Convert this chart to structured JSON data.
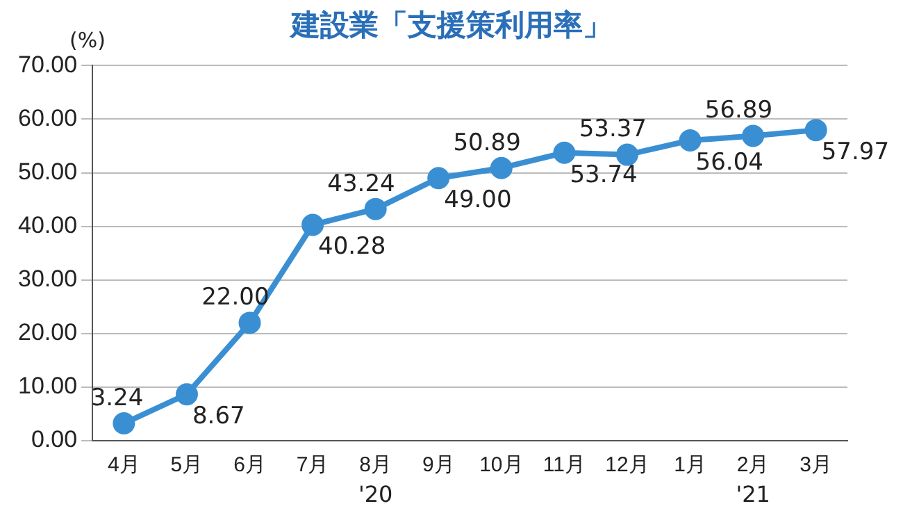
{
  "chart_data": {
    "type": "line",
    "title": "建設業「支援策利用率」",
    "ylabel": "(%)",
    "categories": [
      "4月",
      "5月",
      "6月",
      "7月",
      "8月",
      "9月",
      "10月",
      "11月",
      "12月",
      "1月",
      "2月",
      "3月"
    ],
    "series": [
      {
        "color": "#3a8fd3",
        "values": [
          3.24,
          8.67,
          22.0,
          40.28,
          43.24,
          49.0,
          50.89,
          53.74,
          53.37,
          56.04,
          56.89,
          57.97
        ],
        "value_labels": [
          "3.24",
          "8.67",
          "22.00",
          "40.28",
          "43.24",
          "49.00",
          "50.89",
          "53.74",
          "53.37",
          "56.04",
          "56.89",
          "57.97"
        ]
      }
    ],
    "ylim": [
      0,
      70
    ],
    "yticks": [
      {
        "value": 0,
        "label": "0.00"
      },
      {
        "value": 10,
        "label": "10.00"
      },
      {
        "value": 20,
        "label": "20.00"
      },
      {
        "value": 30,
        "label": "30.00"
      },
      {
        "value": 40,
        "label": "40.00"
      },
      {
        "value": 50,
        "label": "50.00"
      },
      {
        "value": 60,
        "label": "60.00"
      },
      {
        "value": 70,
        "label": "70.00"
      }
    ],
    "annotations": [
      "'20",
      "'21"
    ],
    "grid": "y",
    "legend": false,
    "marker": "circle",
    "line_style": "solid"
  }
}
